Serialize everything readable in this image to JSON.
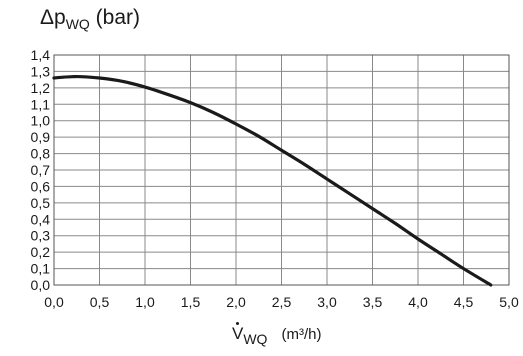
{
  "chart_data": {
    "type": "line",
    "title": "",
    "ylabel": {
      "symbol": "Δp",
      "sub": "WQ",
      "unit": "(bar)"
    },
    "xlabel": {
      "symbol": "V",
      "sub": "WQ",
      "unit": "(m³/h)"
    },
    "xlim": [
      0,
      5
    ],
    "ylim": [
      0,
      1.4
    ],
    "xticks": [
      "0,0",
      "0,5",
      "1,0",
      "1,5",
      "2,0",
      "2,5",
      "3,0",
      "3,5",
      "4,0",
      "4,5",
      "5,0"
    ],
    "yticks": [
      "0,0",
      "0,1",
      "0,2",
      "0,3",
      "0,4",
      "0,5",
      "0,6",
      "0,7",
      "0,8",
      "0,9",
      "1,0",
      "1,1",
      "1,2",
      "1,3",
      "1,4"
    ],
    "grid": true,
    "series": [
      {
        "x": [
          0.0,
          0.1,
          0.2,
          0.3,
          0.5,
          0.75,
          1.0,
          1.25,
          1.5,
          1.75,
          2.0,
          2.25,
          2.5,
          2.75,
          3.0,
          3.25,
          3.5,
          3.75,
          4.0,
          4.25,
          4.5,
          4.8
        ],
        "y": [
          1.26,
          1.265,
          1.268,
          1.268,
          1.26,
          1.24,
          1.205,
          1.16,
          1.11,
          1.05,
          0.98,
          0.905,
          0.82,
          0.735,
          0.645,
          0.555,
          0.465,
          0.375,
          0.28,
          0.19,
          0.1,
          0.0
        ],
        "color": "#1a1a1a"
      }
    ]
  }
}
